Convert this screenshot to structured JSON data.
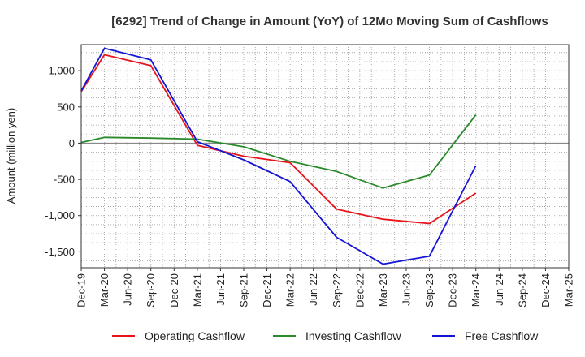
{
  "chart_data": {
    "type": "line",
    "title": "[6292]  Trend of Change in Amount (YoY) of 12Mo Moving Sum of Cashflows",
    "xlabel": "",
    "ylabel": "Amount (million yen)",
    "ylim": [
      -1720,
      1360
    ],
    "yticks": [
      1000,
      500,
      0,
      -500,
      -1000,
      -1500
    ],
    "ytick_labels": [
      "1,000",
      "500",
      "0",
      "-500",
      "-1,000",
      "-1,500"
    ],
    "categories": [
      "Dec-19",
      "Mar-20",
      "Jun-20",
      "Sep-20",
      "Dec-20",
      "Mar-21",
      "Jun-21",
      "Sep-21",
      "Dec-21",
      "Mar-22",
      "Jun-22",
      "Sep-22",
      "Dec-22",
      "Mar-23",
      "Jun-23",
      "Sep-23",
      "Dec-23",
      "Mar-24",
      "Jun-24",
      "Sep-24",
      "Dec-24",
      "Mar-25"
    ],
    "grid": true,
    "legend_position": "bottom",
    "series": [
      {
        "name": "Operating Cashflow",
        "color": "#e8141b",
        "values": [
          710,
          1220,
          null,
          1070,
          null,
          -30,
          null,
          -180,
          null,
          -270,
          null,
          -910,
          null,
          -1050,
          null,
          -1110,
          null,
          -690,
          null,
          null,
          null,
          null
        ]
      },
      {
        "name": "Investing Cashflow",
        "color": "#2a8a2a",
        "values": [
          10,
          80,
          null,
          70,
          null,
          55,
          null,
          -50,
          null,
          -250,
          null,
          -390,
          null,
          -620,
          null,
          -440,
          null,
          390,
          null,
          null,
          null,
          null
        ]
      },
      {
        "name": "Free Cashflow",
        "color": "#1515d6",
        "values": [
          720,
          1310,
          null,
          1150,
          null,
          20,
          null,
          -230,
          null,
          -530,
          null,
          -1300,
          null,
          -1670,
          null,
          -1560,
          null,
          -310,
          null,
          null,
          null,
          null
        ]
      }
    ]
  }
}
